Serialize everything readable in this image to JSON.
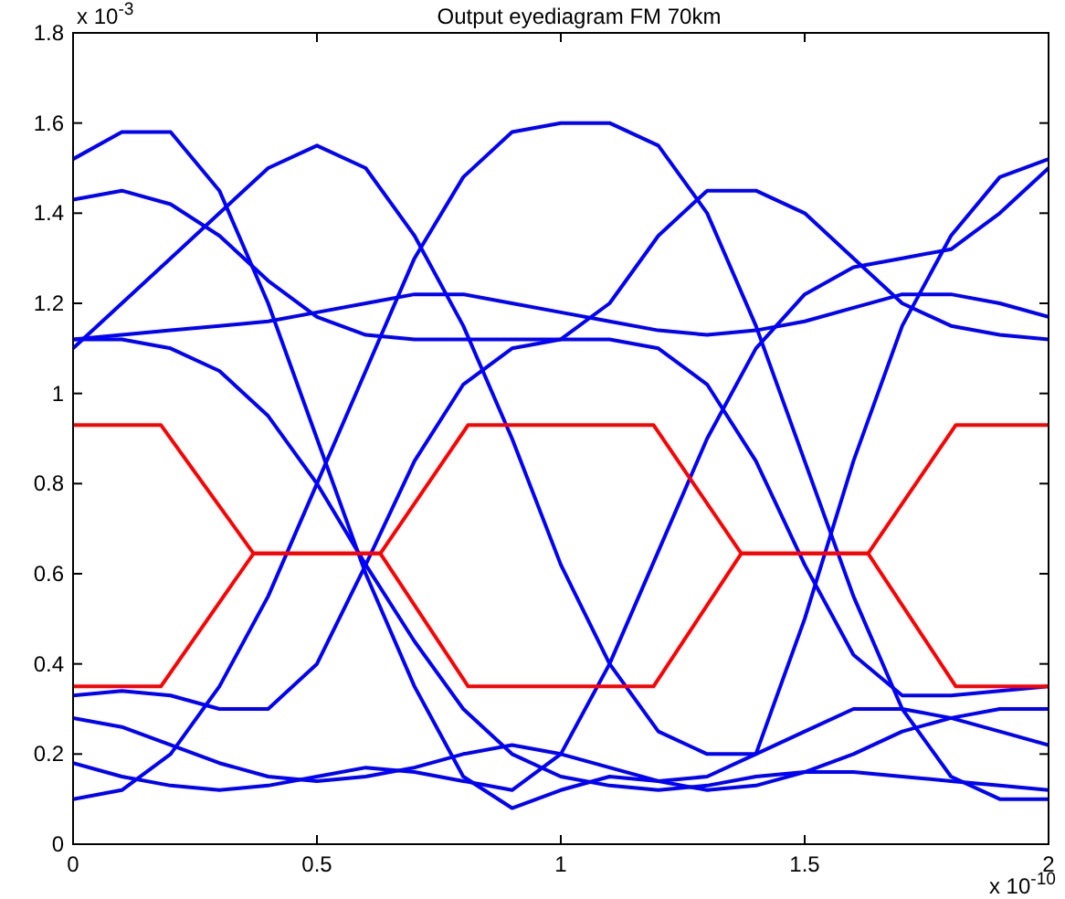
{
  "chart_data": {
    "type": "line",
    "title": "Output eyediagram FM 70km",
    "xlim": [
      0,
      2
    ],
    "ylim": [
      0,
      1.8
    ],
    "xticks": [
      0,
      0.5,
      1,
      1.5,
      2
    ],
    "yticks": [
      0,
      0.2,
      0.4,
      0.6,
      0.8,
      1,
      1.2,
      1.4,
      1.6,
      1.8
    ],
    "annotations": [
      "x 10$^{-3}$",
      "x 10$^{-10}$"
    ],
    "grid": false,
    "marker": "none",
    "line_style": "solid",
    "x": [
      0,
      0.1,
      0.2,
      0.3,
      0.4,
      0.5,
      0.6,
      0.7,
      0.8,
      0.9,
      1,
      1.1,
      1.2,
      1.3,
      1.4,
      1.5,
      1.6,
      1.7,
      1.8,
      1.9,
      2
    ],
    "series": [
      {
        "color": "#0000ff",
        "values": [
          1.52,
          1.58,
          1.58,
          1.45,
          1.2,
          0.9,
          0.6,
          0.35,
          0.15,
          0.08,
          0.12,
          0.15,
          0.14,
          0.15,
          0.2,
          0.5,
          0.85,
          1.15,
          1.35,
          1.48,
          1.52
        ]
      },
      {
        "color": "#0000ff",
        "values": [
          0.1,
          0.12,
          0.2,
          0.35,
          0.55,
          0.8,
          1.05,
          1.3,
          1.48,
          1.58,
          1.6,
          1.6,
          1.55,
          1.4,
          1.15,
          0.85,
          0.55,
          0.3,
          0.15,
          0.1,
          0.1
        ]
      },
      {
        "color": "#0000ff",
        "values": [
          1.12,
          1.13,
          1.14,
          1.15,
          1.16,
          1.18,
          1.2,
          1.22,
          1.22,
          1.2,
          1.18,
          1.16,
          1.14,
          1.13,
          1.14,
          1.16,
          1.19,
          1.22,
          1.22,
          1.2,
          1.17
        ]
      },
      {
        "color": "#0000ff",
        "values": [
          0.28,
          0.26,
          0.22,
          0.18,
          0.15,
          0.14,
          0.15,
          0.17,
          0.2,
          0.22,
          0.2,
          0.17,
          0.14,
          0.12,
          0.13,
          0.16,
          0.2,
          0.25,
          0.28,
          0.3,
          0.3
        ]
      },
      {
        "color": "#0000ff",
        "values": [
          1.12,
          1.12,
          1.1,
          1.05,
          0.95,
          0.8,
          0.62,
          0.45,
          0.3,
          0.2,
          0.15,
          0.13,
          0.12,
          0.13,
          0.15,
          0.16,
          0.16,
          0.15,
          0.14,
          0.13,
          0.12
        ]
      },
      {
        "color": "#0000ff",
        "values": [
          0.33,
          0.34,
          0.33,
          0.3,
          0.3,
          0.4,
          0.62,
          0.85,
          1.02,
          1.1,
          1.12,
          1.12,
          1.1,
          1.02,
          0.85,
          0.62,
          0.42,
          0.33,
          0.33,
          0.34,
          0.35
        ]
      },
      {
        "color": "#0000ff",
        "values": [
          1.43,
          1.45,
          1.42,
          1.35,
          1.25,
          1.17,
          1.13,
          1.12,
          1.12,
          1.12,
          1.12,
          1.2,
          1.35,
          1.45,
          1.45,
          1.4,
          1.3,
          1.2,
          1.15,
          1.13,
          1.12
        ]
      },
      {
        "color": "#0000ff",
        "values": [
          0.18,
          0.15,
          0.13,
          0.12,
          0.13,
          0.15,
          0.17,
          0.16,
          0.14,
          0.12,
          0.2,
          0.4,
          0.65,
          0.9,
          1.1,
          1.22,
          1.28,
          1.3,
          1.32,
          1.4,
          1.5
        ]
      },
      {
        "color": "#0000ff",
        "values": [
          1.1,
          1.2,
          1.3,
          1.4,
          1.5,
          1.55,
          1.5,
          1.35,
          1.15,
          0.9,
          0.62,
          0.4,
          0.25,
          0.2,
          0.2,
          0.25,
          0.3,
          0.3,
          0.28,
          0.25,
          0.22
        ]
      },
      {
        "color": "#ff0000",
        "x": [
          0,
          0.18,
          0.37,
          0.63,
          0.81,
          1.19,
          1.37,
          1.63,
          1.81,
          2
        ],
        "values": [
          0.93,
          0.93,
          0.645,
          0.645,
          0.93,
          0.93,
          0.645,
          0.645,
          0.93,
          0.93
        ]
      },
      {
        "color": "#ff0000",
        "x": [
          0,
          0.18,
          0.37,
          0.63,
          0.81,
          1.19,
          1.37,
          1.63,
          1.81,
          2
        ],
        "values": [
          0.35,
          0.35,
          0.645,
          0.645,
          0.35,
          0.35,
          0.645,
          0.645,
          0.35,
          0.35
        ]
      }
    ]
  }
}
